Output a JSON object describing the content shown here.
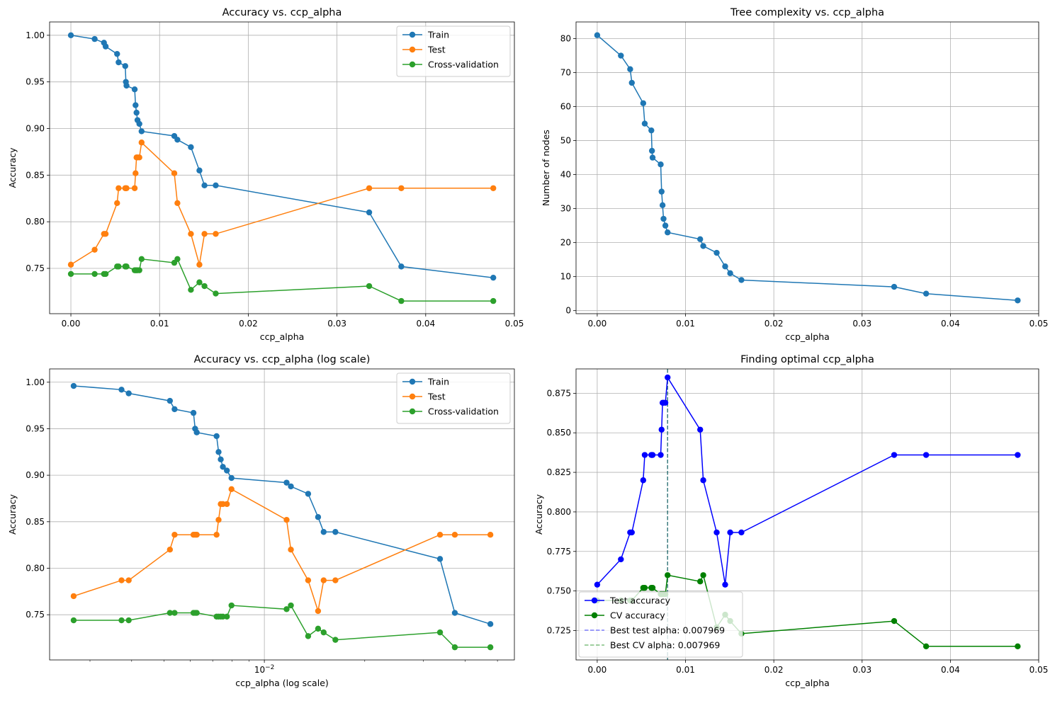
{
  "chart_data": [
    {
      "type": "line",
      "title": "Accuracy vs. ccp_alpha",
      "xlabel": "ccp_alpha",
      "ylabel": "Accuracy",
      "xscale": "linear",
      "xlim": [
        -0.0024,
        0.05
      ],
      "ylim": [
        0.7014,
        1.0143
      ],
      "xticks": [
        0.0,
        0.01,
        0.02,
        0.03,
        0.04,
        0.05
      ],
      "xtick_labels": [
        "0.00",
        "0.01",
        "0.02",
        "0.03",
        "0.04",
        "0.05"
      ],
      "yticks": [
        0.75,
        0.8,
        0.85,
        0.9,
        0.95,
        1.0
      ],
      "ytick_labels": [
        "0.75",
        "0.80",
        "0.85",
        "0.90",
        "0.95",
        "1.00"
      ],
      "grid": true,
      "legend_position": "upper-right",
      "x": [
        0.0,
        0.00268,
        0.00373,
        0.00392,
        0.00521,
        0.00538,
        0.00613,
        0.0062,
        0.00627,
        0.00719,
        0.00729,
        0.0074,
        0.00751,
        0.00772,
        0.00797,
        0.01166,
        0.01201,
        0.01353,
        0.01449,
        0.01506,
        0.01633,
        0.03363,
        0.03725,
        0.04762
      ],
      "series": [
        {
          "name": "Train",
          "color": "#1f77b4",
          "values": [
            1.0,
            0.996,
            0.992,
            0.988,
            0.98,
            0.971,
            0.967,
            0.95,
            0.946,
            0.942,
            0.925,
            0.917,
            0.909,
            0.905,
            0.897,
            0.892,
            0.888,
            0.88,
            0.855,
            0.839,
            0.839,
            0.81,
            0.752,
            0.74
          ]
        },
        {
          "name": "Test",
          "color": "#ff7f0e",
          "values": [
            0.754,
            0.77,
            0.787,
            0.787,
            0.82,
            0.836,
            0.836,
            0.836,
            0.836,
            0.836,
            0.852,
            0.869,
            0.869,
            0.869,
            0.885,
            0.852,
            0.82,
            0.787,
            0.754,
            0.787,
            0.787,
            0.836,
            0.836,
            0.836
          ]
        },
        {
          "name": "Cross-validation",
          "color": "#2ca02c",
          "values": [
            0.744,
            0.744,
            0.744,
            0.744,
            0.752,
            0.752,
            0.752,
            0.752,
            0.752,
            0.748,
            0.748,
            0.748,
            0.748,
            0.748,
            0.76,
            0.756,
            0.76,
            0.727,
            0.735,
            0.731,
            0.723,
            0.731,
            0.715,
            0.715
          ]
        }
      ]
    },
    {
      "type": "line",
      "title": "Tree complexity vs. ccp_alpha",
      "xlabel": "ccp_alpha",
      "ylabel": "Number of nodes",
      "xscale": "linear",
      "xlim": [
        -0.0024,
        0.05
      ],
      "ylim": [
        -0.9,
        84.9
      ],
      "xticks": [
        0.0,
        0.01,
        0.02,
        0.03,
        0.04,
        0.05
      ],
      "xtick_labels": [
        "0.00",
        "0.01",
        "0.02",
        "0.03",
        "0.04",
        "0.05"
      ],
      "yticks": [
        0,
        10,
        20,
        30,
        40,
        50,
        60,
        70,
        80
      ],
      "ytick_labels": [
        "0",
        "10",
        "20",
        "30",
        "40",
        "50",
        "60",
        "70",
        "80"
      ],
      "grid": true,
      "x": [
        0.0,
        0.00268,
        0.00373,
        0.00392,
        0.00521,
        0.00538,
        0.00613,
        0.0062,
        0.00627,
        0.00719,
        0.00729,
        0.0074,
        0.00751,
        0.00772,
        0.00797,
        0.01166,
        0.01201,
        0.01353,
        0.01449,
        0.01506,
        0.01633,
        0.03363,
        0.03725,
        0.04762
      ],
      "series": [
        {
          "color": "#1f77b4",
          "values": [
            81,
            75,
            71,
            67,
            61,
            55,
            53,
            47,
            45,
            43,
            35,
            31,
            27,
            25,
            23,
            21,
            19,
            17,
            13,
            11,
            9,
            7,
            5,
            3
          ]
        }
      ]
    },
    {
      "type": "line",
      "title": "Accuracy vs. ccp_alpha (log scale)",
      "xlabel": "ccp_alpha (log scale)",
      "ylabel": "Accuracy",
      "xscale": "log",
      "xlim": [
        0.00227,
        0.0562
      ],
      "ylim": [
        0.7014,
        1.0143
      ],
      "xticks_major": [
        0.01
      ],
      "xtick_labels": [
        "10⁻²"
      ],
      "xticks_minor": [
        0.003,
        0.004,
        0.005,
        0.006,
        0.007,
        0.008,
        0.009,
        0.02,
        0.03,
        0.04,
        0.05
      ],
      "yticks": [
        0.75,
        0.8,
        0.85,
        0.9,
        0.95,
        1.0
      ],
      "ytick_labels": [
        "0.75",
        "0.80",
        "0.85",
        "0.90",
        "0.95",
        "1.00"
      ],
      "grid": true,
      "legend_position": "upper-right",
      "x": [
        0.00268,
        0.00373,
        0.00392,
        0.00521,
        0.00538,
        0.00613,
        0.0062,
        0.00627,
        0.00719,
        0.00729,
        0.0074,
        0.00751,
        0.00772,
        0.00797,
        0.01166,
        0.01201,
        0.01353,
        0.01449,
        0.01506,
        0.01633,
        0.03363,
        0.03725,
        0.04762
      ],
      "series": [
        {
          "name": "Train",
          "color": "#1f77b4",
          "values": [
            0.996,
            0.992,
            0.988,
            0.98,
            0.971,
            0.967,
            0.95,
            0.946,
            0.942,
            0.925,
            0.917,
            0.909,
            0.905,
            0.897,
            0.892,
            0.888,
            0.88,
            0.855,
            0.839,
            0.839,
            0.81,
            0.752,
            0.74
          ]
        },
        {
          "name": "Test",
          "color": "#ff7f0e",
          "values": [
            0.77,
            0.787,
            0.787,
            0.82,
            0.836,
            0.836,
            0.836,
            0.836,
            0.836,
            0.852,
            0.869,
            0.869,
            0.869,
            0.885,
            0.852,
            0.82,
            0.787,
            0.754,
            0.787,
            0.787,
            0.836,
            0.836,
            0.836
          ]
        },
        {
          "name": "Cross-validation",
          "color": "#2ca02c",
          "values": [
            0.744,
            0.744,
            0.744,
            0.752,
            0.752,
            0.752,
            0.752,
            0.752,
            0.748,
            0.748,
            0.748,
            0.748,
            0.748,
            0.76,
            0.756,
            0.76,
            0.727,
            0.735,
            0.731,
            0.723,
            0.731,
            0.715,
            0.715
          ]
        }
      ]
    },
    {
      "type": "line",
      "title": "Finding optimal ccp_alpha",
      "xlabel": "ccp_alpha",
      "ylabel": "Accuracy",
      "xscale": "linear",
      "xlim": [
        -0.0024,
        0.05
      ],
      "ylim": [
        0.7064,
        0.8904
      ],
      "xticks": [
        0.0,
        0.01,
        0.02,
        0.03,
        0.04,
        0.05
      ],
      "xtick_labels": [
        "0.00",
        "0.01",
        "0.02",
        "0.03",
        "0.04",
        "0.05"
      ],
      "yticks": [
        0.725,
        0.75,
        0.775,
        0.8,
        0.825,
        0.85,
        0.875
      ],
      "ytick_labels": [
        "0.725",
        "0.750",
        "0.775",
        "0.800",
        "0.825",
        "0.850",
        "0.875"
      ],
      "grid": true,
      "legend_position": "lower-left",
      "x": [
        0.0,
        0.00268,
        0.00373,
        0.00392,
        0.00521,
        0.00538,
        0.00613,
        0.0062,
        0.00627,
        0.00719,
        0.00729,
        0.0074,
        0.00751,
        0.00772,
        0.00797,
        0.01166,
        0.01201,
        0.01353,
        0.01449,
        0.01506,
        0.01633,
        0.03363,
        0.03725,
        0.04762
      ],
      "series": [
        {
          "name": "Test accuracy",
          "color": "#0000ff",
          "values": [
            0.754,
            0.77,
            0.787,
            0.787,
            0.82,
            0.836,
            0.836,
            0.836,
            0.836,
            0.836,
            0.852,
            0.869,
            0.869,
            0.869,
            0.885,
            0.852,
            0.82,
            0.787,
            0.754,
            0.787,
            0.787,
            0.836,
            0.836,
            0.836
          ]
        },
        {
          "name": "CV accuracy",
          "color": "#008000",
          "values": [
            0.744,
            0.744,
            0.744,
            0.744,
            0.752,
            0.752,
            0.752,
            0.752,
            0.752,
            0.748,
            0.748,
            0.748,
            0.748,
            0.748,
            0.76,
            0.756,
            0.76,
            0.727,
            0.735,
            0.731,
            0.723,
            0.731,
            0.715,
            0.715
          ]
        }
      ],
      "vlines": [
        {
          "name": "Best test alpha: 0.007969",
          "x": 0.007969,
          "color": "#0000ff",
          "style": "dashed"
        },
        {
          "name": "Best CV alpha: 0.007969",
          "x": 0.007969,
          "color": "#008000",
          "style": "dashed"
        }
      ]
    }
  ]
}
